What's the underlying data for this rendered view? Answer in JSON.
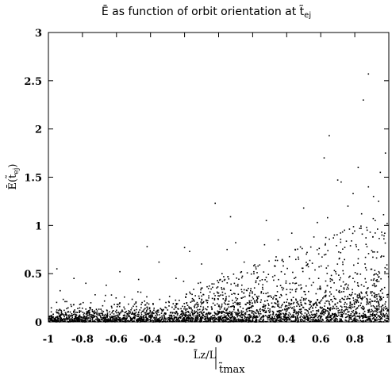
{
  "chart_data": {
    "type": "scatter",
    "title_pre": "Ē as function of orbit orientation at t̃",
    "title_sub": "ej",
    "xlabel_main": "L̃z/L",
    "xlabel_sub": "t̃max",
    "ylabel_main": "Ē(t̃",
    "ylabel_sub": "ej",
    "ylabel_post": ")",
    "xlim": [
      -1,
      1
    ],
    "ylim": [
      0,
      3
    ],
    "x_ticks": [
      -1,
      -0.8,
      -0.6,
      -0.4,
      -0.2,
      0,
      0.2,
      0.4,
      0.6,
      0.8,
      1
    ],
    "x_tick_labels": [
      "-1",
      "-0.8",
      "-0.6",
      "-0.4",
      "-0.2",
      "0",
      "0.2",
      "0.4",
      "0.6",
      "0.8",
      "1"
    ],
    "y_ticks": [
      0,
      0.5,
      1,
      1.5,
      2,
      2.5,
      3
    ],
    "y_tick_labels": [
      "0",
      "0.5",
      "1",
      "1.5",
      "2",
      "2.5",
      "3"
    ],
    "grid": false,
    "marker_color": "#000000",
    "points": [
      [
        0.88,
        2.57
      ],
      [
        0.85,
        2.3
      ],
      [
        0.65,
        1.93
      ],
      [
        0.62,
        1.7
      ],
      [
        0.82,
        1.6
      ],
      [
        0.7,
        1.47
      ],
      [
        0.72,
        1.45
      ],
      [
        0.98,
        1.75
      ],
      [
        0.95,
        1.55
      ],
      [
        0.88,
        1.4
      ],
      [
        -0.02,
        1.23
      ],
      [
        0.07,
        1.09
      ],
      [
        0.5,
        1.18
      ],
      [
        0.58,
        1.03
      ],
      [
        0.28,
        1.05
      ],
      [
        0.79,
        1.33
      ],
      [
        0.91,
        1.3
      ],
      [
        0.94,
        1.25
      ],
      [
        0.76,
        1.2
      ],
      [
        0.84,
        1.12
      ],
      [
        0.64,
        1.08
      ],
      [
        0.92,
        1.05
      ],
      [
        0.99,
        1.02
      ],
      [
        0.87,
        0.98
      ],
      [
        0.74,
        0.95
      ],
      [
        0.43,
        0.92
      ],
      [
        0.56,
        0.88
      ],
      [
        0.68,
        0.9
      ],
      [
        0.96,
        0.9
      ],
      [
        0.35,
        0.85
      ],
      [
        0.1,
        0.82
      ],
      [
        -0.42,
        0.78
      ],
      [
        -0.2,
        0.77
      ],
      [
        0.27,
        0.8
      ],
      [
        0.05,
        0.75
      ],
      [
        -0.17,
        0.73
      ],
      [
        0.52,
        0.72
      ],
      [
        0.63,
        0.7
      ],
      [
        0.81,
        0.78
      ],
      [
        0.9,
        0.74
      ],
      [
        -0.95,
        0.55
      ],
      [
        -0.85,
        0.45
      ],
      [
        -0.58,
        0.52
      ],
      [
        -0.35,
        0.62
      ],
      [
        -0.1,
        0.6
      ],
      [
        0.15,
        0.62
      ],
      [
        0.38,
        0.58
      ],
      [
        0.47,
        0.65
      ],
      [
        0.71,
        0.66
      ],
      [
        0.97,
        0.68
      ],
      [
        -0.78,
        0.4
      ],
      [
        -0.66,
        0.38
      ],
      [
        -0.25,
        0.45
      ],
      [
        0.02,
        0.5
      ],
      [
        0.22,
        0.55
      ],
      [
        0.33,
        0.48
      ],
      [
        0.59,
        0.57
      ],
      [
        0.86,
        0.6
      ],
      [
        -0.47,
        0.44
      ],
      [
        -0.12,
        0.4
      ]
    ]
  }
}
